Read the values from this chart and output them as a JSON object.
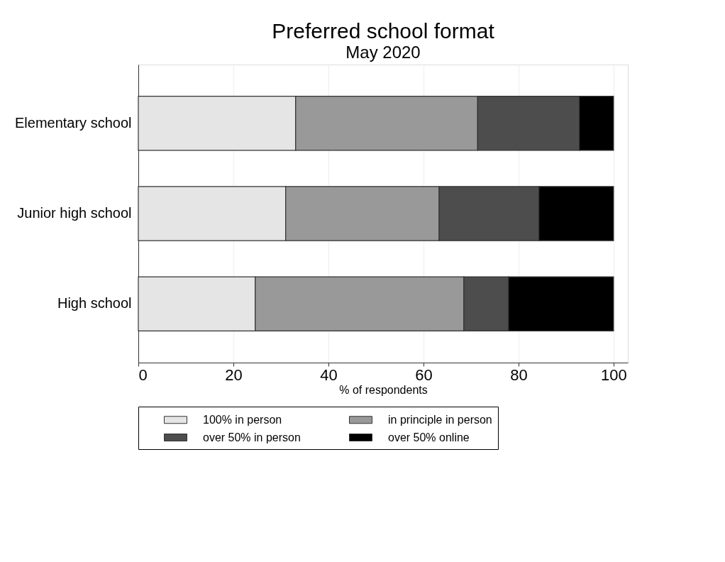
{
  "chart_data": {
    "type": "bar",
    "orientation": "horizontal",
    "stacked": true,
    "title": "Preferred school format",
    "subtitle": "May 2020",
    "xlabel": "% of respondents",
    "categories": [
      "Elementary school",
      "Junior high school",
      "High school"
    ],
    "series": [
      {
        "name": "100% in person",
        "color": "#e5e5e5",
        "values": [
          33.1,
          31.0,
          24.6
        ]
      },
      {
        "name": "in principle in person",
        "color": "#999999",
        "values": [
          38.3,
          32.3,
          43.9
        ]
      },
      {
        "name": "over 50% in person",
        "color": "#4d4d4d",
        "values": [
          21.4,
          21.0,
          9.4
        ]
      },
      {
        "name": "over 50% online",
        "color": "#000000",
        "values": [
          7.2,
          15.7,
          22.1
        ]
      }
    ],
    "xlim": [
      0,
      103
    ],
    "xticks": [
      0,
      20,
      40,
      60,
      80,
      100
    ],
    "grid": "x",
    "legend": "bottom"
  }
}
